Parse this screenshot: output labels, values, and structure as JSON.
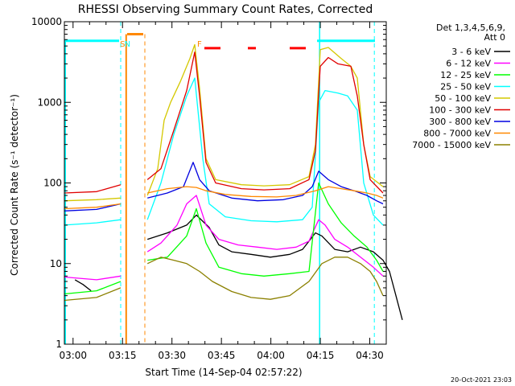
{
  "chart_data": {
    "type": "line",
    "title": "RHESSI Observing Summary Count Rates, Corrected",
    "xlabel": "Start Time (14-Sep-04 02:57:22)",
    "ylabel": "Corrected Count Rate (s⁻¹ detector⁻¹)",
    "yscale": "log",
    "ylim": [
      1,
      10000
    ],
    "xlim": [
      "02:57:22",
      "04:35:00"
    ],
    "x_ticks": [
      "03:00",
      "03:15",
      "03:30",
      "03:45",
      "04:00",
      "04:15",
      "04:30"
    ],
    "y_ticks": [
      "1",
      "10",
      "100",
      "1000",
      "10000"
    ],
    "legend": {
      "position": "right",
      "header": [
        "Det 1,3,4,5,6,9,",
        "Att 0"
      ],
      "entries": [
        {
          "label": "3 - 6 keV",
          "color": "#000000"
        },
        {
          "label": "6 - 12 keV",
          "color": "#ff00ff"
        },
        {
          "label": "12 - 25 keV",
          "color": "#00ff00"
        },
        {
          "label": "25 - 50 keV",
          "color": "#00ffff"
        },
        {
          "label": "50 - 100 keV",
          "color": "#d4c800"
        },
        {
          "label": "100 - 300 keV",
          "color": "#e00000"
        },
        {
          "label": "300 - 800 keV",
          "color": "#0000e0"
        },
        {
          "label": "800 - 7000 keV",
          "color": "#ff8800"
        },
        {
          "label": "7000 - 15000 keV",
          "color": "#8b8000"
        }
      ]
    },
    "annotations": [
      {
        "text": "S",
        "x": "03:15:00",
        "color": "#ff8800"
      },
      {
        "text": "N",
        "x": "03:16:30",
        "color": "#00ffff"
      },
      {
        "text": "F",
        "x": "03:38:20",
        "color": "#ff8800"
      }
    ],
    "footer": "20-Oct-2021 23:03",
    "series": [
      {
        "name": "3 - 6 keV",
        "color": "#000000",
        "segments": [
          [
            [
              3.3,
              6.3
            ],
            [
              5.8,
              5.5
            ],
            [
              8.3,
              4.6
            ]
          ],
          [
            [
              25.8,
              20
            ],
            [
              32,
              24
            ],
            [
              38,
              30
            ],
            [
              41,
              40
            ],
            [
              45,
              28
            ],
            [
              48,
              17
            ],
            [
              52,
              14
            ],
            [
              58,
              13
            ],
            [
              64,
              12
            ],
            [
              70,
              13
            ],
            [
              74,
              15
            ],
            [
              78,
              24
            ],
            [
              80,
              22
            ],
            [
              84,
              15
            ],
            [
              88,
              14
            ],
            [
              92,
              16
            ],
            [
              96,
              14
            ],
            [
              99,
              11
            ],
            [
              101,
              8
            ],
            [
              103,
              4
            ],
            [
              105,
              2
            ]
          ]
        ]
      },
      {
        "name": "6 - 12 keV",
        "color": "#ff00ff",
        "segments": [
          [
            [
              0,
              6.8
            ],
            [
              10,
              6.3
            ],
            [
              17.5,
              7
            ]
          ],
          [
            [
              25.8,
              14
            ],
            [
              30,
              18
            ],
            [
              35,
              30
            ],
            [
              38,
              55
            ],
            [
              41,
              70
            ],
            [
              44,
              30
            ],
            [
              48,
              20
            ],
            [
              54,
              17
            ],
            [
              60,
              16
            ],
            [
              66,
              15
            ],
            [
              72,
              16
            ],
            [
              76,
              19
            ],
            [
              79,
              35
            ],
            [
              81,
              30
            ],
            [
              84,
              20
            ],
            [
              88,
              16
            ],
            [
              92,
              12
            ],
            [
              96,
              9
            ],
            [
              99,
              7
            ]
          ]
        ]
      },
      {
        "name": "12 - 25 keV",
        "color": "#00ff00",
        "segments": [
          [
            [
              0,
              4.2
            ],
            [
              10,
              4.6
            ],
            [
              17.5,
              6
            ]
          ],
          [
            [
              25.8,
              11
            ],
            [
              32,
              12
            ],
            [
              38,
              22
            ],
            [
              41,
              48
            ],
            [
              44,
              18
            ],
            [
              48,
              9
            ],
            [
              55,
              7.5
            ],
            [
              62,
              7
            ],
            [
              70,
              7.5
            ],
            [
              76,
              8
            ],
            [
              79,
              100
            ],
            [
              82,
              55
            ],
            [
              86,
              32
            ],
            [
              90,
              22
            ],
            [
              94,
              16
            ],
            [
              97,
              11
            ],
            [
              99,
              8
            ]
          ]
        ]
      },
      {
        "name": "25 - 50 keV",
        "color": "#00ffff",
        "segments": [
          [
            [
              0,
              30
            ],
            [
              10,
              32
            ],
            [
              17.5,
              35
            ]
          ],
          [
            [
              25.8,
              35
            ],
            [
              30,
              100
            ],
            [
              34,
              400
            ],
            [
              38,
              1200
            ],
            [
              40.5,
              2000
            ],
            [
              43,
              200
            ],
            [
              45,
              55
            ],
            [
              50,
              38
            ],
            [
              58,
              34
            ],
            [
              66,
              33
            ],
            [
              74,
              35
            ],
            [
              77,
              50
            ],
            [
              79,
              1000
            ],
            [
              81,
              1400
            ],
            [
              85,
              1300
            ],
            [
              88,
              1200
            ],
            [
              91,
              800
            ],
            [
              93,
              100
            ],
            [
              96,
              40
            ],
            [
              99,
              30
            ]
          ]
        ]
      },
      {
        "name": "50 - 100 keV",
        "color": "#d4c800",
        "segments": [
          [
            [
              0,
              60
            ],
            [
              10,
              62
            ],
            [
              17.5,
              65
            ]
          ],
          [
            [
              25.8,
              70
            ],
            [
              29,
              150
            ],
            [
              31,
              600
            ],
            [
              33,
              1000
            ],
            [
              36,
              1800
            ],
            [
              39,
              3500
            ],
            [
              40.5,
              5200
            ],
            [
              42,
              1500
            ],
            [
              44,
              200
            ],
            [
              47,
              110
            ],
            [
              55,
              95
            ],
            [
              62,
              92
            ],
            [
              70,
              95
            ],
            [
              76,
              120
            ],
            [
              78,
              300
            ],
            [
              79.5,
              4500
            ],
            [
              82,
              4800
            ],
            [
              86,
              3500
            ],
            [
              89,
              2800
            ],
            [
              91,
              2000
            ],
            [
              93,
              300
            ],
            [
              95,
              120
            ],
            [
              99,
              90
            ]
          ]
        ]
      },
      {
        "name": "100 - 300 keV",
        "color": "#e00000",
        "segments": [
          [
            [
              0,
              75
            ],
            [
              10,
              78
            ],
            [
              17.5,
              95
            ]
          ],
          [
            [
              25.8,
              110
            ],
            [
              30,
              150
            ],
            [
              34,
              450
            ],
            [
              38,
              1400
            ],
            [
              40.5,
              4200
            ],
            [
              42,
              1200
            ],
            [
              44,
              180
            ],
            [
              47,
              100
            ],
            [
              55,
              85
            ],
            [
              62,
              82
            ],
            [
              70,
              85
            ],
            [
              76,
              110
            ],
            [
              78,
              250
            ],
            [
              79.5,
              2800
            ],
            [
              82,
              3600
            ],
            [
              85,
              3000
            ],
            [
              89,
              2800
            ],
            [
              91,
              1200
            ],
            [
              93,
              300
            ],
            [
              95,
              110
            ],
            [
              99,
              75
            ]
          ]
        ]
      },
      {
        "name": "300 - 800 keV",
        "color": "#0000e0",
        "segments": [
          [
            [
              0,
              45
            ],
            [
              10,
              47
            ],
            [
              17.5,
              55
            ]
          ],
          [
            [
              25.8,
              65
            ],
            [
              32,
              75
            ],
            [
              37,
              90
            ],
            [
              40,
              180
            ],
            [
              42,
              110
            ],
            [
              45,
              80
            ],
            [
              52,
              65
            ],
            [
              60,
              60
            ],
            [
              68,
              62
            ],
            [
              74,
              70
            ],
            [
              77,
              90
            ],
            [
              79,
              140
            ],
            [
              82,
              110
            ],
            [
              86,
              90
            ],
            [
              90,
              80
            ],
            [
              94,
              70
            ],
            [
              97,
              60
            ],
            [
              99,
              55
            ]
          ]
        ]
      },
      {
        "name": "800 - 7000 keV",
        "color": "#ff8800",
        "segments": [
          [
            [
              0,
              48
            ],
            [
              10,
              50
            ],
            [
              17.5,
              55
            ]
          ],
          [
            [
              25.8,
              75
            ],
            [
              32,
              85
            ],
            [
              38,
              90
            ],
            [
              41,
              88
            ],
            [
              44,
              80
            ],
            [
              50,
              72
            ],
            [
              58,
              68
            ],
            [
              66,
              67
            ],
            [
              72,
              70
            ],
            [
              78,
              80
            ],
            [
              82,
              90
            ],
            [
              86,
              85
            ],
            [
              90,
              80
            ],
            [
              94,
              75
            ],
            [
              97,
              70
            ],
            [
              99,
              65
            ]
          ]
        ]
      },
      {
        "name": "7000 - 15000 keV",
        "color": "#8b8000",
        "segments": [
          [
            [
              0,
              3.5
            ],
            [
              10,
              3.8
            ],
            [
              17.5,
              5
            ]
          ],
          [
            [
              25.8,
              10
            ],
            [
              30,
              12
            ],
            [
              34,
              11
            ],
            [
              38,
              10
            ],
            [
              42,
              8
            ],
            [
              46,
              6
            ],
            [
              52,
              4.5
            ],
            [
              58,
              3.8
            ],
            [
              64,
              3.6
            ],
            [
              70,
              4
            ],
            [
              76,
              6
            ],
            [
              80,
              10
            ],
            [
              84,
              12
            ],
            [
              88,
              12
            ],
            [
              92,
              10
            ],
            [
              95,
              8
            ],
            [
              97,
              6
            ],
            [
              99,
              4
            ]
          ]
        ]
      }
    ]
  }
}
